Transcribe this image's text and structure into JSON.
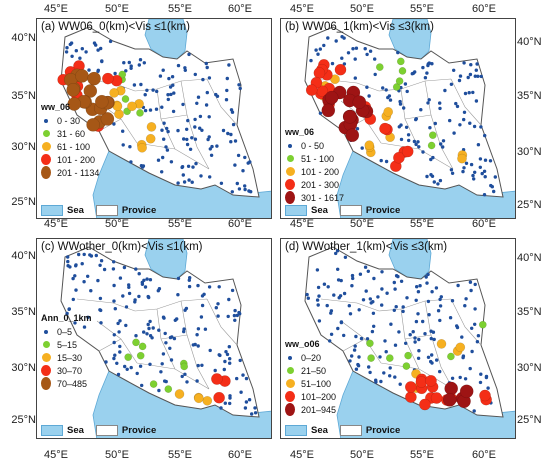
{
  "colors": {
    "sea": "#9ad1ee",
    "land": "#ffffff",
    "border": "#555555",
    "province_line": "#9a9a9a",
    "station": "#1f4e9c"
  },
  "axes": {
    "lon_labels": [
      "45°E",
      "50°E",
      "55°E",
      "60°E"
    ],
    "lat_labels": [
      "40°N",
      "35°N",
      "30°N",
      "25°N"
    ]
  },
  "panels": [
    {
      "id": "a",
      "title": "(a) WW06_0(km)<Vis ≤1(km)",
      "legend_title": "ww_06",
      "legend": [
        {
          "label": "0 - 30",
          "color": "#1f4e9c",
          "size": 3
        },
        {
          "label": "31 - 60",
          "color": "#7dd031",
          "size": 6
        },
        {
          "label": "61 - 100",
          "color": "#f6b021",
          "size": 8
        },
        {
          "label": "101 - 200",
          "color": "#f42e17",
          "size": 10
        },
        {
          "label": "201 - 1134",
          "color": "#a65716",
          "size": 12
        }
      ],
      "sea_label": "Sea",
      "province_label": "Provice"
    },
    {
      "id": "b",
      "title": "(b) WW06_1(km)<Vis ≤3(km)",
      "legend_title": "ww_06",
      "legend": [
        {
          "label": "0 - 50",
          "color": "#1f4e9c",
          "size": 3
        },
        {
          "label": "51 - 100",
          "color": "#7dd031",
          "size": 6
        },
        {
          "label": "101 - 200",
          "color": "#f6b021",
          "size": 8
        },
        {
          "label": "201 - 300",
          "color": "#f42e17",
          "size": 10
        },
        {
          "label": "301 - 1617",
          "color": "#9e1414",
          "size": 12
        }
      ],
      "sea_label": "Sea",
      "province_label": "Provice"
    },
    {
      "id": "c",
      "title": "(c) WWother_0(km)<Vis ≤1(km)",
      "legend_title": "Ann_0_1km",
      "legend": [
        {
          "label": "0–5",
          "color": "#1f4e9c",
          "size": 3
        },
        {
          "label": "5–15",
          "color": "#7dd031",
          "size": 6
        },
        {
          "label": "15–30",
          "color": "#f6b021",
          "size": 8
        },
        {
          "label": "30–70",
          "color": "#f42e17",
          "size": 10
        },
        {
          "label": "70–485",
          "color": "#a65716",
          "size": 12
        }
      ],
      "sea_label": "Sea",
      "province_label": "Provice"
    },
    {
      "id": "d",
      "title": "(d) WWother_1(km)<Vis ≤3(km)",
      "legend_title": "ww_o06",
      "legend": [
        {
          "label": "0–20",
          "color": "#1f4e9c",
          "size": 3
        },
        {
          "label": "21–50",
          "color": "#7dd031",
          "size": 6
        },
        {
          "label": "51–100",
          "color": "#f6b021",
          "size": 8
        },
        {
          "label": "101–200",
          "color": "#f42e17",
          "size": 10
        },
        {
          "label": "201–945",
          "color": "#9e1414",
          "size": 12
        }
      ],
      "sea_label": "Sea",
      "province_label": "Provice"
    }
  ]
}
